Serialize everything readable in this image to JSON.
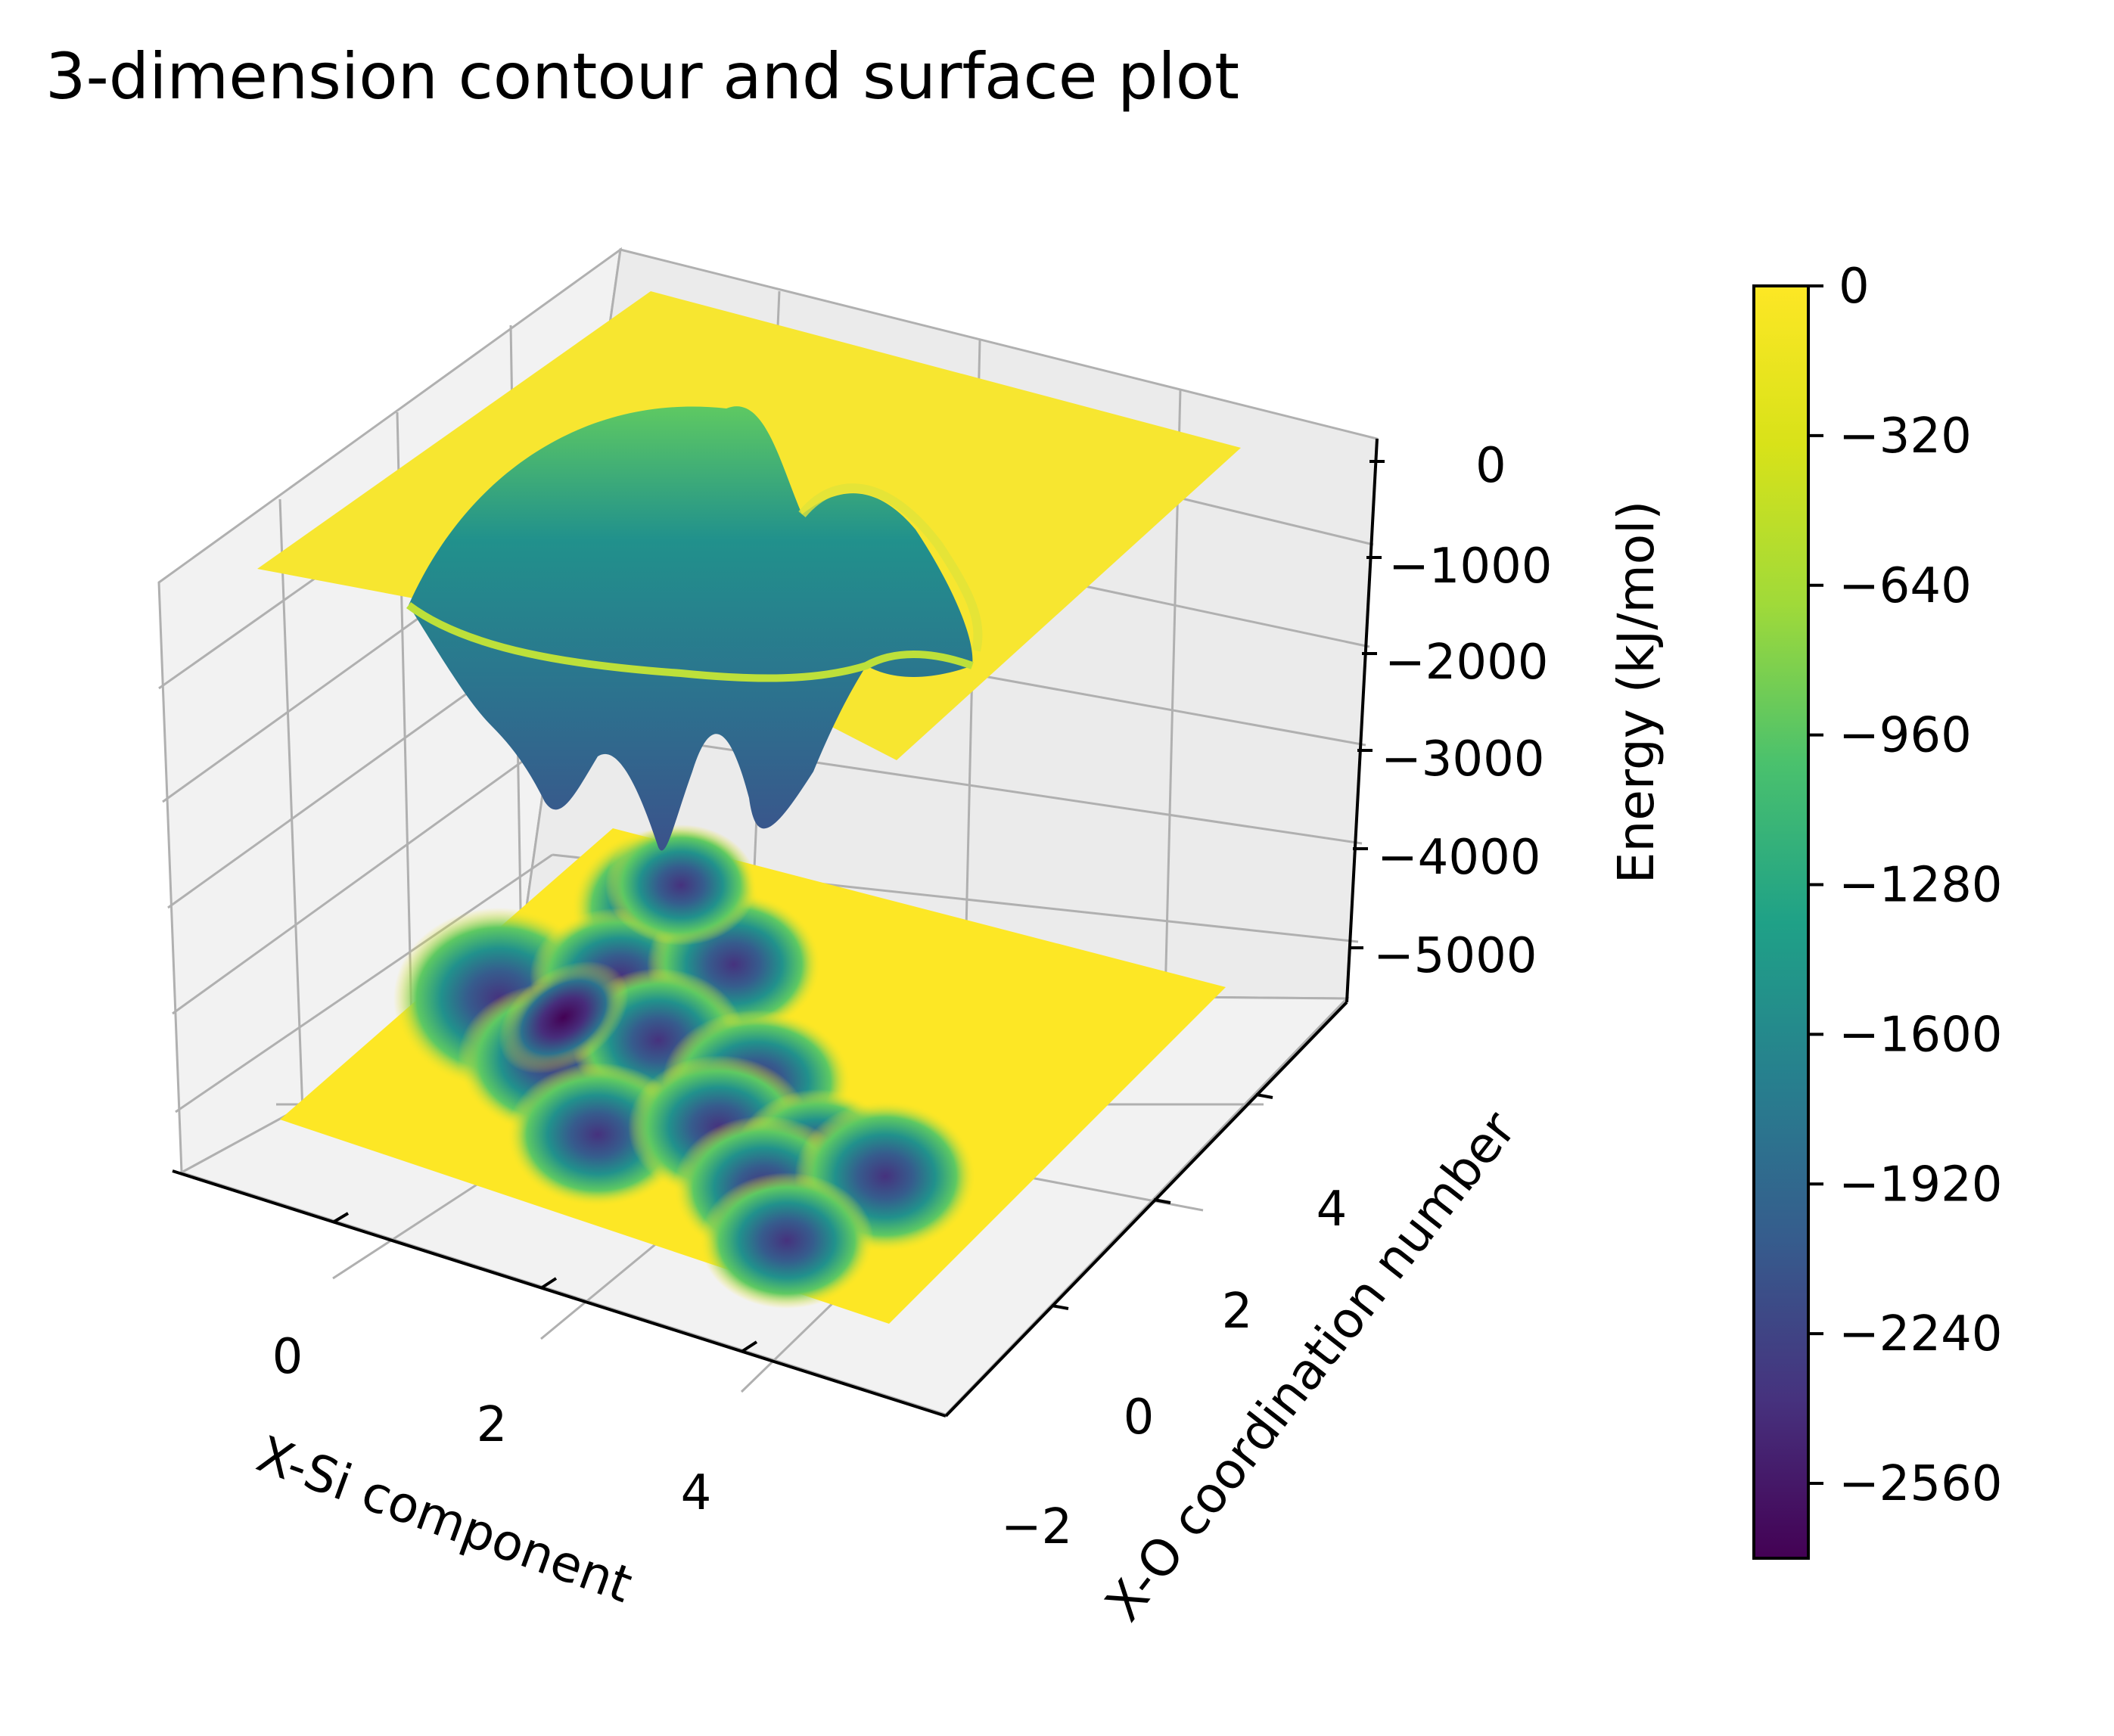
{
  "chart_data": {
    "type": "surface3d",
    "title": "3-dimension contour and surface plot",
    "xlabel": "X-Si component",
    "ylabel": "X-O coordination number",
    "zlabel": "Energy (kJ/mol)",
    "xticks": [
      "0",
      "2",
      "4"
    ],
    "yticks": [
      "−2",
      "0",
      "2",
      "4"
    ],
    "zticks": [
      "0",
      "−1000",
      "−2000",
      "−3000",
      "−4000",
      "−5000"
    ],
    "colorbar": {
      "colormap": "viridis",
      "range": [
        -2720,
        0
      ],
      "ticks": [
        "0",
        "−320",
        "−640",
        "−960",
        "−1280",
        "−1600",
        "−1920",
        "−2240",
        "−2560"
      ]
    },
    "colors": {
      "viridis_low": "#440154",
      "viridis_mid": "#21918c",
      "viridis_high": "#fde725",
      "pane": "#f2f2f2",
      "grid": "#b0b0b0"
    }
  }
}
